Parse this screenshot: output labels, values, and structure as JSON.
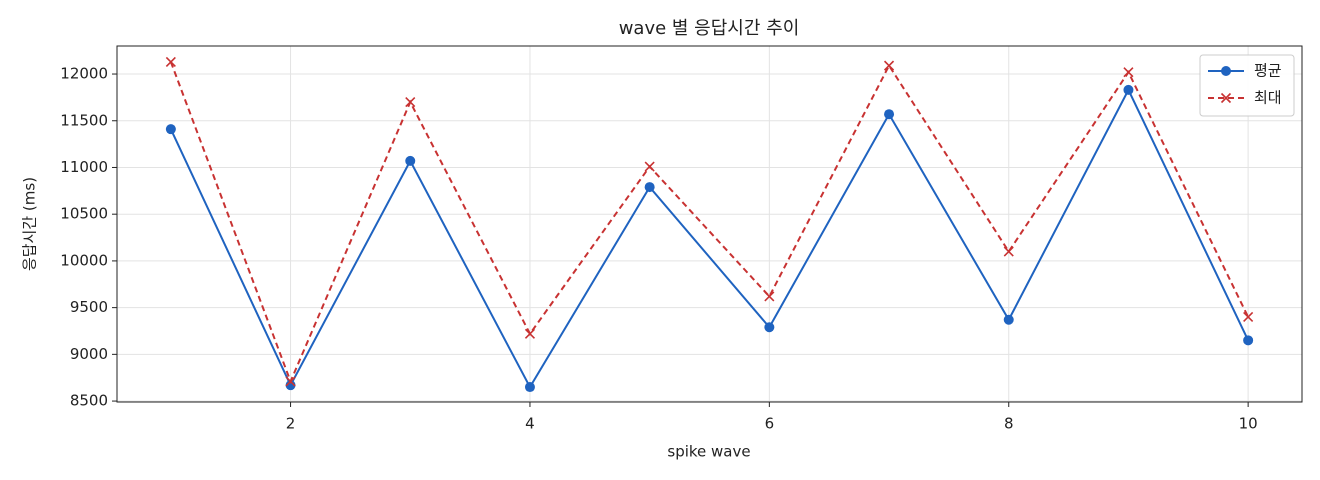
{
  "chart_data": {
    "type": "line",
    "title": "wave 별 응답시간 추이",
    "xlabel": "spike wave",
    "ylabel": "응답시간 (ms)",
    "x": [
      1,
      2,
      3,
      4,
      5,
      6,
      7,
      8,
      9,
      10
    ],
    "series": [
      {
        "name": "평균",
        "color": "#1f63c0",
        "marker": "o",
        "linestyle": "solid",
        "values": [
          11410,
          8670,
          11070,
          8650,
          10790,
          9290,
          11570,
          9370,
          11830,
          9150
        ]
      },
      {
        "name": "최대",
        "color": "#c83232",
        "marker": "x",
        "linestyle": "dashed",
        "values": [
          12130,
          8710,
          11700,
          9220,
          11010,
          9620,
          12090,
          10100,
          12020,
          9400
        ]
      }
    ],
    "xlim": [
      0.55,
      10.45
    ],
    "xticks": [
      2,
      4,
      6,
      8,
      10
    ],
    "ylim": [
      8490,
      12300
    ],
    "yticks": [
      8500,
      9000,
      9500,
      10000,
      10500,
      11000,
      11500,
      12000
    ],
    "grid": true,
    "legend": "upper right"
  }
}
